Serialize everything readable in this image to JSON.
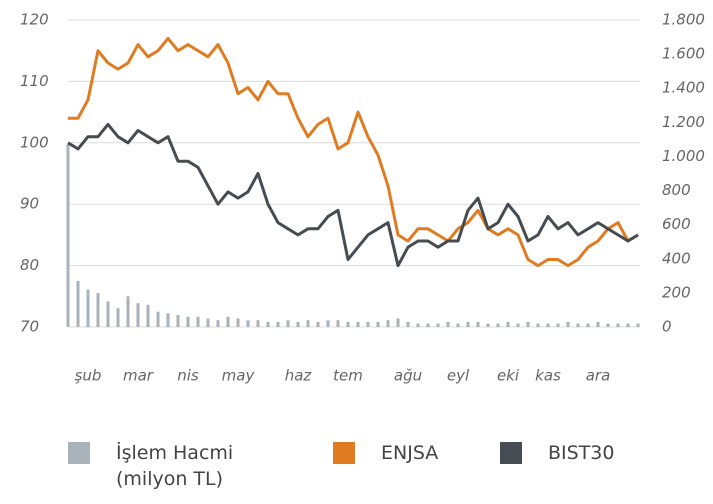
{
  "chart_data": {
    "type": "line",
    "categories": [
      null,
      null,
      "şub",
      null,
      null,
      null,
      null,
      "mar",
      null,
      null,
      null,
      null,
      "nis",
      null,
      null,
      null,
      null,
      "may",
      null,
      null,
      null,
      null,
      null,
      "haz",
      null,
      null,
      null,
      null,
      "tem",
      null,
      null,
      null,
      null,
      null,
      "ağu",
      null,
      null,
      null,
      null,
      "eyl",
      null,
      null,
      null,
      null,
      "eki",
      null,
      null,
      null,
      "kas",
      null,
      null,
      null,
      null,
      "ara",
      null,
      null,
      null,
      null
    ],
    "series": [
      {
        "name": "İşlem Hacmi (milyon TL)",
        "type": "bar",
        "axis": "y2",
        "color": "#a9b1b9",
        "values": [
          1070,
          270,
          220,
          200,
          150,
          110,
          180,
          140,
          130,
          90,
          80,
          70,
          60,
          60,
          50,
          40,
          60,
          50,
          40,
          40,
          30,
          30,
          40,
          30,
          40,
          30,
          40,
          40,
          30,
          30,
          30,
          30,
          40,
          50,
          30,
          20,
          20,
          20,
          30,
          20,
          30,
          30,
          20,
          20,
          30,
          20,
          30,
          20,
          20,
          20,
          30,
          20,
          20,
          30,
          20,
          20,
          20,
          20
        ]
      },
      {
        "name": "ENJSA",
        "color": "#e07b22",
        "values": [
          104,
          104,
          107,
          115,
          113,
          112,
          113,
          116,
          114,
          115,
          117,
          115,
          116,
          115,
          114,
          116,
          113,
          108,
          109,
          107,
          110,
          108,
          108,
          104,
          101,
          103,
          104,
          99,
          100,
          105,
          101,
          98,
          93,
          85,
          84,
          86,
          86,
          85,
          84,
          86,
          87,
          89,
          86,
          85,
          86,
          85,
          81,
          80,
          81,
          81,
          80,
          81,
          83,
          84,
          86,
          87,
          84,
          85
        ]
      },
      {
        "name": "BIST30",
        "color": "#474c52",
        "values": [
          100,
          99,
          101,
          101,
          103,
          101,
          100,
          102,
          101,
          100,
          101,
          97,
          97,
          96,
          93,
          90,
          92,
          91,
          92,
          95,
          90,
          87,
          86,
          85,
          86,
          86,
          88,
          89,
          81,
          83,
          85,
          86,
          87,
          80,
          83,
          84,
          84,
          83,
          84,
          84,
          89,
          91,
          86,
          87,
          90,
          88,
          84,
          85,
          88,
          86,
          87,
          85,
          86,
          87,
          86,
          85,
          84,
          85
        ]
      }
    ],
    "ylim": [
      70,
      120
    ],
    "yticks": [
      70,
      80,
      90,
      100,
      110,
      120
    ],
    "y2lim": [
      0,
      1800
    ],
    "y2ticks": [
      0,
      200,
      400,
      600,
      800,
      {
        "value": 1000,
        "label": "1.000"
      },
      {
        "value": 1200,
        "label": "1.200"
      },
      {
        "value": 1400,
        "label": "1.400"
      },
      {
        "value": 1600,
        "label": "1.600"
      },
      {
        "value": 1800,
        "label": "1.800"
      }
    ],
    "grid": true,
    "legend": "bottom"
  }
}
